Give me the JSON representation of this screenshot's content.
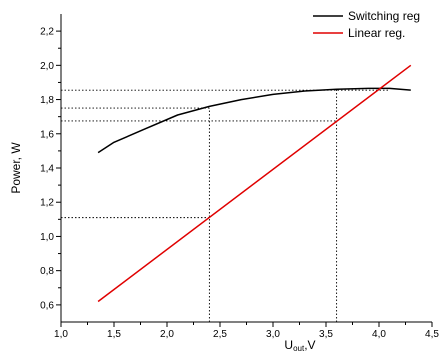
{
  "chart_data": {
    "type": "line",
    "title": "",
    "xlabel": "U",
    "xlabel_subscript": "out",
    "xlabel_suffix": ",V",
    "ylabel": "Power, W",
    "xlim": [
      1.0,
      4.5
    ],
    "ylim": [
      0.5,
      2.3
    ],
    "x_ticks": [
      1.0,
      1.5,
      2.0,
      2.5,
      3.0,
      3.5,
      4.0,
      4.5
    ],
    "x_tick_labels": [
      "1,0",
      "1,5",
      "2,0",
      "2,5",
      "3,0",
      "3,5",
      "4,0",
      "4,5"
    ],
    "y_ticks": [
      0.6,
      0.8,
      1.0,
      1.2,
      1.4,
      1.6,
      1.8,
      2.0,
      2.2
    ],
    "y_tick_labels": [
      "0,6",
      "0,8",
      "1,0",
      "1,2",
      "1,4",
      "1,6",
      "1,8",
      "2,0",
      "2,2"
    ],
    "grid": false,
    "legend_position": "top-right",
    "series": [
      {
        "name": "Switching reg",
        "color": "#000000",
        "x": [
          1.35,
          1.5,
          1.8,
          2.1,
          2.4,
          2.7,
          3.0,
          3.3,
          3.6,
          3.9,
          4.1,
          4.3
        ],
        "y": [
          1.49,
          1.55,
          1.63,
          1.71,
          1.76,
          1.8,
          1.83,
          1.85,
          1.86,
          1.865,
          1.865,
          1.855
        ]
      },
      {
        "name": "Linear reg.",
        "color": "#e00000",
        "x": [
          1.35,
          4.3
        ],
        "y": [
          0.62,
          2.0
        ]
      }
    ],
    "reference_lines": [
      {
        "type": "h",
        "y": 1.855,
        "x_from": 1.0,
        "x_to": 4.1
      },
      {
        "type": "h",
        "y": 1.75,
        "x_from": 1.0,
        "x_to": 2.4
      },
      {
        "type": "h",
        "y": 1.675,
        "x_from": 1.0,
        "x_to": 3.6
      },
      {
        "type": "h",
        "y": 1.11,
        "x_from": 1.0,
        "x_to": 2.4
      },
      {
        "type": "v",
        "x": 2.4,
        "y_from": 0.5,
        "y_to": 1.75
      },
      {
        "type": "v",
        "x": 3.6,
        "y_from": 0.5,
        "y_to": 1.86
      }
    ]
  }
}
